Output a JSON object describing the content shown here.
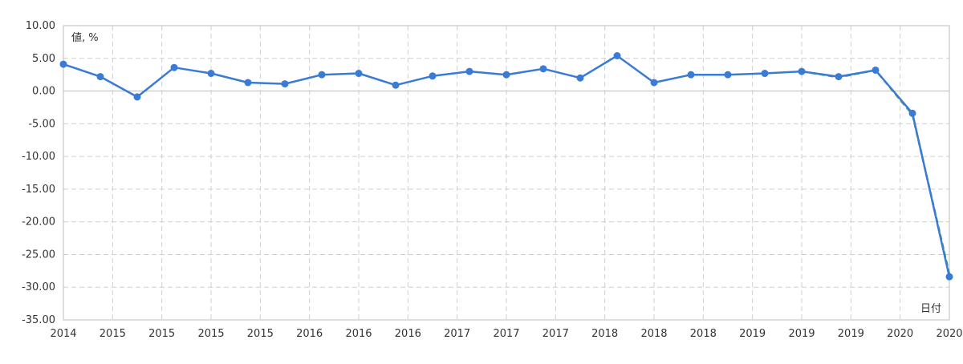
{
  "chart_data": {
    "type": "line",
    "title": "",
    "ylabel": "値, %",
    "xlabel": "日付",
    "ylim": [
      -35,
      10
    ],
    "yticks": [
      "10.00",
      "5.00",
      "0.00",
      "-5.00",
      "-10.00",
      "-15.00",
      "-20.00",
      "-25.00",
      "-30.00",
      "-35.00"
    ],
    "xticks": [
      "2014",
      "2015",
      "2015",
      "2015",
      "2015",
      "2016",
      "2016",
      "2016",
      "2017",
      "2017",
      "2017",
      "2018",
      "2018",
      "2018",
      "2019",
      "2019",
      "2019",
      "2020",
      "2020"
    ],
    "grid": true,
    "series": [
      {
        "color": "#3a7bd5",
        "values": [
          4.1,
          2.2,
          -0.9,
          3.6,
          2.7,
          1.3,
          1.1,
          2.5,
          2.7,
          0.9,
          2.3,
          3.0,
          2.5,
          3.4,
          2.0,
          5.4,
          1.3,
          2.5,
          2.5,
          2.7,
          3.0,
          2.2,
          3.2,
          -3.4,
          -28.4
        ]
      },
      {
        "color": "#3fa34d",
        "dashed": true,
        "start_index": 20,
        "values": [
          3.0,
          2.1,
          3.2,
          -3.6,
          -28.0
        ]
      }
    ]
  }
}
